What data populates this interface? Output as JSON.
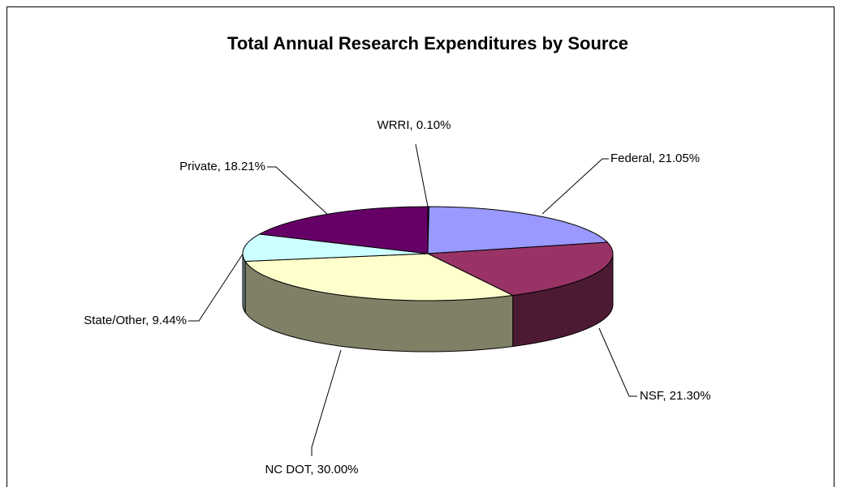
{
  "chart_data": {
    "type": "pie",
    "title": "Total Annual Research Expenditures by Source",
    "categories": [
      "WRRI",
      "Federal",
      "NSF",
      "NC DOT",
      "State/Other",
      "Private"
    ],
    "values": [
      0.1,
      21.05,
      21.3,
      30.0,
      9.44,
      18.21
    ],
    "value_labels": [
      "WRRI, 0.10%",
      "Federal, 21.05%",
      "NSF, 21.30%",
      "NC DOT, 30.00%",
      "State/Other, 9.44%",
      "Private, 18.21%"
    ],
    "colors": [
      "#333399",
      "#9999FF",
      "#993366",
      "#FFFFCC",
      "#CCFFFF",
      "#660066"
    ],
    "side_colors": [
      "#1A1A4D",
      "#4D4D80",
      "#4D1A33",
      "#808066",
      "#668080",
      "#330033"
    ]
  }
}
